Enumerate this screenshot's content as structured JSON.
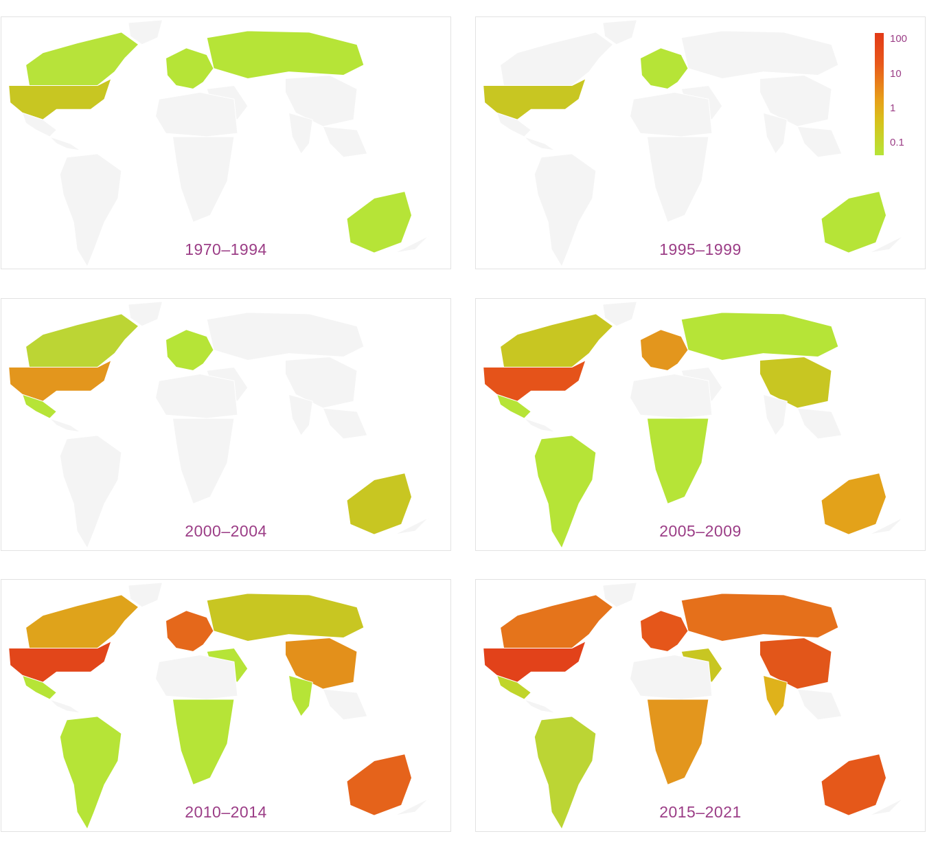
{
  "legend": {
    "ticks": [
      "100",
      "10",
      "1",
      "0.1"
    ],
    "colors": [
      "#e23a17",
      "#e8581b",
      "#e7a019",
      "#d7c11b",
      "#b6e437"
    ]
  },
  "colors": {
    "land": "#f4f4f4",
    "label": "#9b3d86"
  },
  "panels": [
    {
      "period": "1970–1994",
      "regions": {
        "na_north": "#b7e33a",
        "usa": "#c8c622",
        "mexico": null,
        "south_america": null,
        "europe": "#b6e437",
        "russia": "#b6e437",
        "china": null,
        "india": null,
        "africa_south": null,
        "australia": "#b6e437",
        "middle_east": null
      }
    },
    {
      "period": "1995–1999",
      "regions": {
        "na_north": "#f4f4f4",
        "usa": "#c8c622",
        "mexico": null,
        "south_america": null,
        "europe": "#b6e437",
        "russia": null,
        "china": null,
        "india": null,
        "africa_south": null,
        "australia": "#b6e437",
        "middle_east": null
      }
    },
    {
      "period": "2000–2004",
      "regions": {
        "na_north": "#bcd534",
        "usa": "#e3961d",
        "mexico": "#b6e437",
        "south_america": null,
        "europe": "#b6e437",
        "russia": null,
        "china": null,
        "india": null,
        "africa_south": null,
        "australia": "#c8c622",
        "middle_east": null
      }
    },
    {
      "period": "2005–2009",
      "regions": {
        "na_north": "#c8c622",
        "usa": "#e5531a",
        "mexico": "#b6e437",
        "south_america": "#b6e437",
        "europe": "#e3961d",
        "russia": "#b6e437",
        "china": "#c8c622",
        "india": null,
        "africa_south": "#b6e437",
        "australia": "#e3a21a",
        "middle_east": null
      }
    },
    {
      "period": "2010–2014",
      "regions": {
        "na_north": "#dfa31b",
        "usa": "#e2461a",
        "mexico": "#b6e437",
        "south_america": "#b6e437",
        "europe": "#e5681b",
        "russia": "#c8c622",
        "china": "#e3901b",
        "india": "#b6e437",
        "africa_south": "#b6e437",
        "australia": "#e5631b",
        "middle_east": "#b6e437"
      }
    },
    {
      "period": "2015–2021",
      "regions": {
        "na_north": "#e5741b",
        "usa": "#e2421a",
        "mexico": "#c0d52b",
        "south_america": "#bcd534",
        "europe": "#e5561a",
        "russia": "#e5701b",
        "china": "#e2561a",
        "india": "#dfb21b",
        "africa_south": "#e3961d",
        "australia": "#e5581a",
        "middle_east": "#c8c622"
      }
    }
  ]
}
